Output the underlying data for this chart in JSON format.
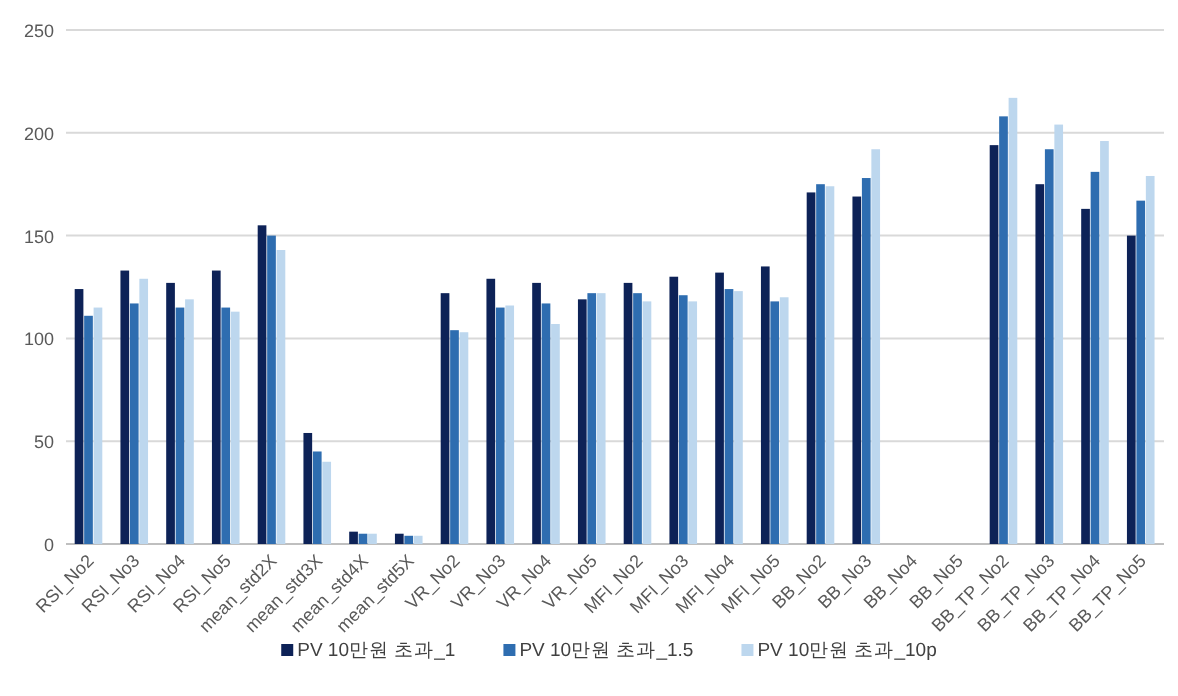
{
  "chart_data": {
    "type": "bar",
    "categories": [
      "RSI_No2",
      "RSI_No3",
      "RSI_No4",
      "RSI_No5",
      "mean_std2X",
      "mean_std3X",
      "mean_std4X",
      "mean_std5X",
      "VR_No2",
      "VR_No3",
      "VR_No4",
      "VR_No5",
      "MFI_No2",
      "MFI_No3",
      "MFI_No4",
      "MFI_No5",
      "BB_No2",
      "BB_No3",
      "BB_No4",
      "BB_No5",
      "BB_TP_No2",
      "BB_TP_No3",
      "BB_TP_No4",
      "BB_TP_No5"
    ],
    "series": [
      {
        "name": "PV 10만원 초과_1",
        "color": "#0d2257",
        "values": [
          124,
          133,
          127,
          133,
          155,
          54,
          6,
          5,
          122,
          129,
          127,
          119,
          127,
          130,
          132,
          135,
          171,
          169,
          null,
          null,
          194,
          175,
          163,
          150
        ]
      },
      {
        "name": "PV 10만원 초과_1.5",
        "color": "#2e6db0",
        "values": [
          111,
          117,
          115,
          115,
          150,
          45,
          5,
          4,
          104,
          115,
          117,
          122,
          122,
          121,
          124,
          118,
          175,
          178,
          null,
          null,
          208,
          192,
          181,
          167
        ]
      },
      {
        "name": "PV 10만원 초과_10p",
        "color": "#bdd7ee",
        "values": [
          115,
          129,
          119,
          113,
          143,
          40,
          5,
          4,
          103,
          116,
          107,
          122,
          118,
          118,
          123,
          120,
          174,
          192,
          null,
          null,
          217,
          204,
          196,
          179
        ]
      }
    ],
    "ylim": [
      0,
      250
    ],
    "yticks": [
      0,
      50,
      100,
      150,
      200,
      250
    ],
    "grid": "y",
    "legend": "bottom"
  }
}
